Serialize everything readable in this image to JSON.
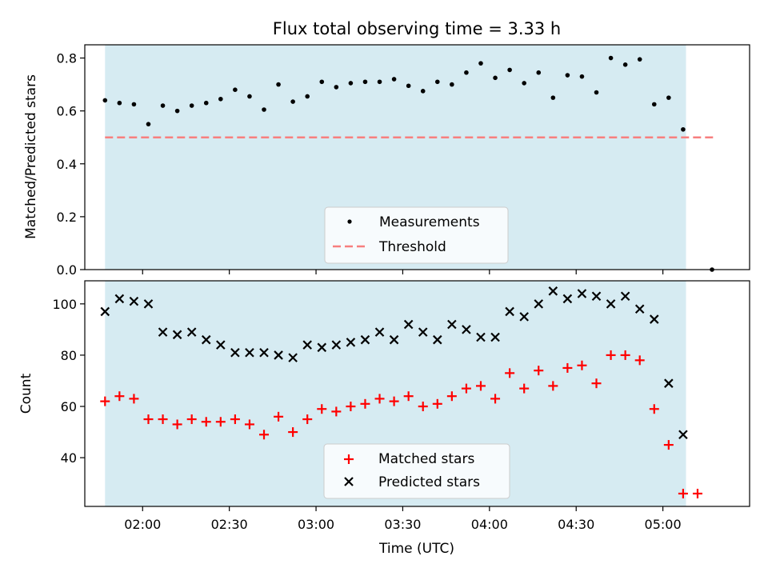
{
  "chart_data": [
    {
      "type": "scatter",
      "title": "Flux total observing time = 3.33 h",
      "ylabel": "Matched/Predicted stars",
      "ylim": [
        0,
        0.85
      ],
      "yticks": [
        "0.0",
        "0.2",
        "0.4",
        "0.6",
        "0.8"
      ],
      "shaded_range": [
        "01:47",
        "05:08"
      ],
      "threshold": {
        "value": 0.5,
        "x_start": "01:47",
        "x_end": "05:18",
        "color": "#f77f7f"
      },
      "series": [
        {
          "name": "Measurements",
          "color": "#000000",
          "marker": "dot",
          "x": [
            "01:47",
            "01:52",
            "01:57",
            "02:02",
            "02:07",
            "02:12",
            "02:17",
            "02:22",
            "02:27",
            "02:32",
            "02:37",
            "02:42",
            "02:47",
            "02:52",
            "02:57",
            "03:02",
            "03:07",
            "03:12",
            "03:17",
            "03:22",
            "03:27",
            "03:32",
            "03:37",
            "03:42",
            "03:47",
            "03:52",
            "03:57",
            "04:02",
            "04:07",
            "04:12",
            "04:17",
            "04:22",
            "04:27",
            "04:32",
            "04:37",
            "04:42",
            "04:47",
            "04:52",
            "04:57",
            "05:02",
            "05:07",
            "05:17"
          ],
          "y": [
            0.64,
            0.63,
            0.625,
            0.55,
            0.62,
            0.6,
            0.62,
            0.63,
            0.645,
            0.68,
            0.655,
            0.605,
            0.7,
            0.635,
            0.655,
            0.71,
            0.69,
            0.705,
            0.71,
            0.71,
            0.72,
            0.695,
            0.675,
            0.71,
            0.7,
            0.745,
            0.78,
            0.725,
            0.755,
            0.705,
            0.745,
            0.65,
            0.735,
            0.73,
            0.67,
            0.8,
            0.775,
            0.795,
            0.625,
            0.65,
            0.53,
            0.0
          ]
        }
      ],
      "legend": {
        "position": "lower-center",
        "entries": [
          "Measurements",
          "Threshold"
        ]
      }
    },
    {
      "type": "scatter",
      "xlabel": "Time (UTC)",
      "ylabel": "Count",
      "ylim": [
        21,
        109
      ],
      "yticks": [
        "40",
        "60",
        "80",
        "100"
      ],
      "xticks": [
        "02:00",
        "02:30",
        "03:00",
        "03:30",
        "04:00",
        "04:30",
        "05:00"
      ],
      "shaded_range": [
        "01:47",
        "05:08"
      ],
      "series": [
        {
          "name": "Matched stars",
          "color": "#ff0000",
          "marker": "plus",
          "x": [
            "01:47",
            "01:52",
            "01:57",
            "02:02",
            "02:07",
            "02:12",
            "02:17",
            "02:22",
            "02:27",
            "02:32",
            "02:37",
            "02:42",
            "02:47",
            "02:52",
            "02:57",
            "03:02",
            "03:07",
            "03:12",
            "03:17",
            "03:22",
            "03:27",
            "03:32",
            "03:37",
            "03:42",
            "03:47",
            "03:52",
            "03:57",
            "04:02",
            "04:07",
            "04:12",
            "04:17",
            "04:22",
            "04:27",
            "04:32",
            "04:37",
            "04:42",
            "04:47",
            "04:52",
            "04:57",
            "05:02",
            "05:07",
            "05:12"
          ],
          "y": [
            62,
            64,
            63,
            55,
            55,
            53,
            55,
            54,
            54,
            55,
            53,
            49,
            56,
            50,
            55,
            59,
            58,
            60,
            61,
            63,
            62,
            64,
            60,
            61,
            64,
            67,
            68,
            63,
            73,
            67,
            74,
            68,
            75,
            76,
            69,
            80,
            80,
            78,
            59,
            45,
            26,
            26
          ]
        },
        {
          "name": "Predicted stars",
          "color": "#000000",
          "marker": "x",
          "x": [
            "01:47",
            "01:52",
            "01:57",
            "02:02",
            "02:07",
            "02:12",
            "02:17",
            "02:22",
            "02:27",
            "02:32",
            "02:37",
            "02:42",
            "02:47",
            "02:52",
            "02:57",
            "03:02",
            "03:07",
            "03:12",
            "03:17",
            "03:22",
            "03:27",
            "03:32",
            "03:37",
            "03:42",
            "03:47",
            "03:52",
            "03:57",
            "04:02",
            "04:07",
            "04:12",
            "04:17",
            "04:22",
            "04:27",
            "04:32",
            "04:37",
            "04:42",
            "04:47",
            "04:52",
            "04:57",
            "05:02",
            "05:07"
          ],
          "y": [
            97,
            102,
            101,
            100,
            89,
            88,
            89,
            86,
            84,
            81,
            81,
            81,
            80,
            79,
            84,
            83,
            84,
            85,
            86,
            89,
            86,
            92,
            89,
            86,
            92,
            90,
            87,
            87,
            97,
            95,
            100,
            105,
            102,
            104,
            103,
            100,
            103,
            98,
            94,
            69,
            49
          ]
        }
      ],
      "legend": {
        "position": "lower-center",
        "entries": [
          "Matched stars",
          "Predicted stars"
        ]
      }
    }
  ]
}
